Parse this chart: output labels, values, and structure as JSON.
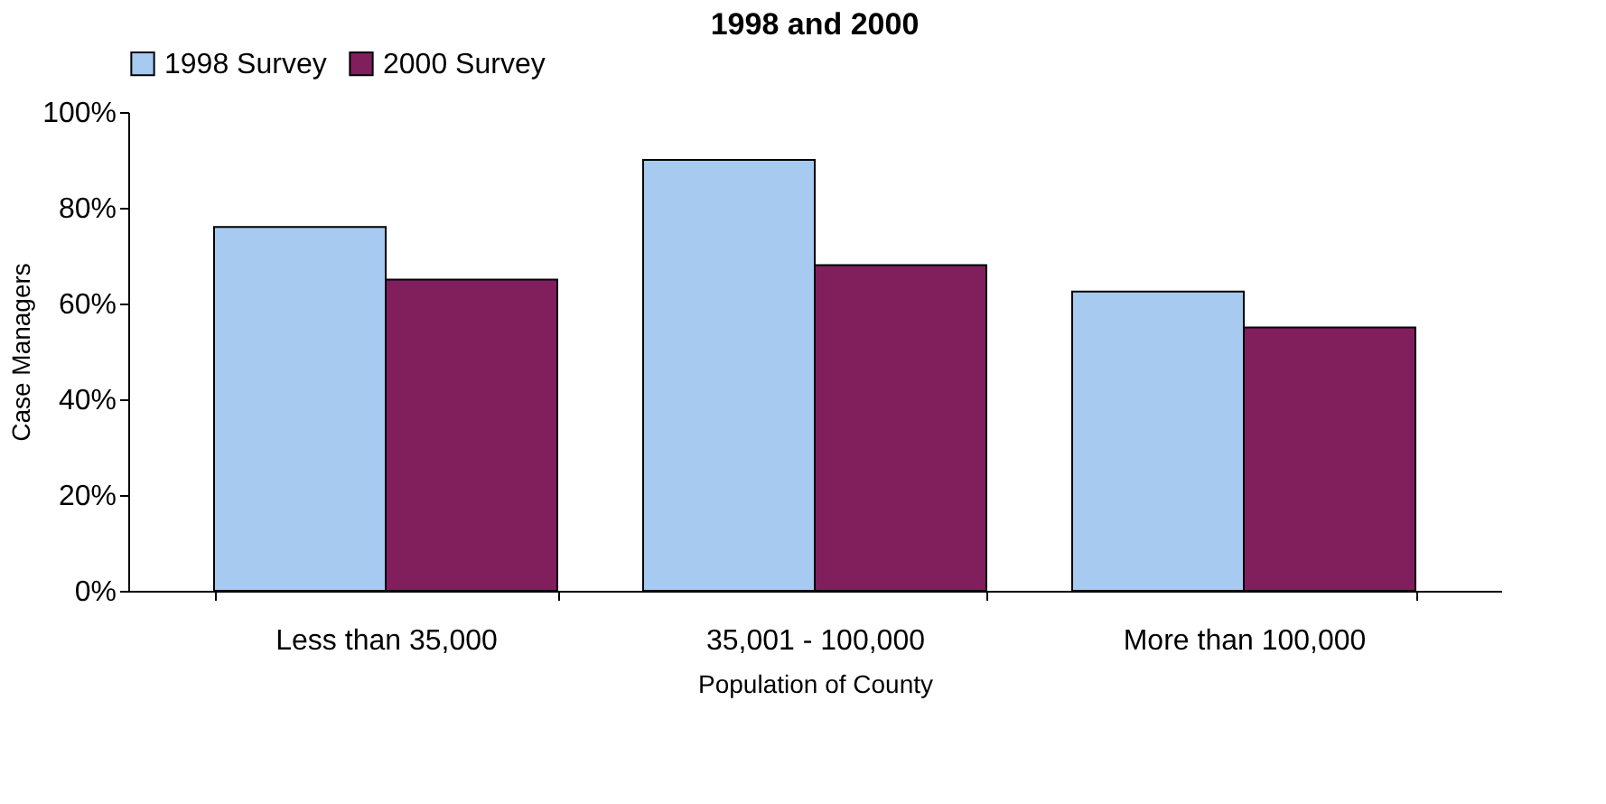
{
  "chart_data": {
    "type": "bar",
    "title": "1998 and 2000",
    "xlabel": "Population of County",
    "ylabel": "Case Managers",
    "categories": [
      "Less than 35,000",
      "35,001 - 100,000",
      "More than 100,000"
    ],
    "series": [
      {
        "name": "1998 Survey",
        "color": "#a6caf0",
        "values": [
          76,
          90,
          62.5
        ]
      },
      {
        "name": "2000 Survey",
        "color": "#801f5c",
        "values": [
          65,
          68,
          55
        ]
      }
    ],
    "ylim": [
      0,
      100
    ],
    "yticks": [
      {
        "value": 0,
        "label": "0%"
      },
      {
        "value": 20,
        "label": "20%"
      },
      {
        "value": 40,
        "label": "40%"
      },
      {
        "value": 60,
        "label": "60%"
      },
      {
        "value": 80,
        "label": "80%"
      },
      {
        "value": 100,
        "label": "100%"
      }
    ],
    "grid": false,
    "legend": "top"
  }
}
